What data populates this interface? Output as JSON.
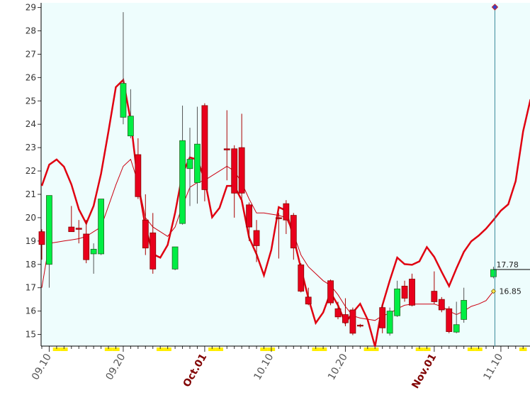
{
  "chart_data": {
    "type": "candlestick",
    "categories": [
      null,
      "09.10",
      null,
      null,
      null,
      null,
      null,
      null,
      null,
      null,
      null,
      "09.20",
      null,
      null,
      null,
      null,
      null,
      null,
      null,
      null,
      null,
      null,
      "Oct.01",
      null,
      null,
      null,
      null,
      null,
      null,
      null,
      null,
      "10.10",
      null,
      null,
      null,
      null,
      null,
      null,
      null,
      null,
      null,
      "10.20",
      null,
      null,
      null,
      null,
      null,
      null,
      null,
      null,
      null,
      null,
      null,
      "Nov.01",
      null,
      null,
      null,
      null,
      null,
      null,
      null,
      null,
      "11.10",
      null,
      null,
      null,
      null
    ],
    "open": [
      19.4,
      18.0,
      null,
      null,
      19.6,
      19.55,
      19.3,
      18.45,
      18.45,
      null,
      null,
      24.3,
      23.5,
      22.7,
      19.9,
      19.35,
      null,
      null,
      17.8,
      19.75,
      22.1,
      21.5,
      24.8,
      null,
      null,
      22.95,
      22.95,
      23.0,
      20.55,
      19.45,
      null,
      null,
      20.0,
      20.6,
      20.1,
      17.98,
      16.6,
      null,
      null,
      17.3,
      16.1,
      15.85,
      16.05,
      15.4,
      null,
      null,
      16.15,
      15.05,
      15.8,
      17.07,
      17.37,
      null,
      null,
      16.85,
      16.5,
      16.1,
      15.1,
      15.64,
      null,
      null,
      null,
      17.47,
      null,
      null,
      null,
      null,
      null
    ],
    "high": [
      19.5,
      20.95,
      null,
      null,
      20.5,
      19.9,
      19.9,
      18.9,
      20.8,
      null,
      null,
      28.8,
      25.5,
      23.4,
      21.0,
      20.2,
      null,
      null,
      18.75,
      24.8,
      23.85,
      24.75,
      24.9,
      null,
      null,
      24.6,
      23.1,
      24.45,
      20.65,
      19.9,
      null,
      null,
      20.2,
      20.75,
      20.2,
      18.05,
      17.0,
      null,
      null,
      17.35,
      16.4,
      16.55,
      16.15,
      15.45,
      null,
      null,
      16.3,
      16.15,
      17.3,
      17.3,
      17.6,
      null,
      null,
      17.7,
      16.6,
      16.2,
      16.4,
      17.0,
      null,
      null,
      null,
      17.9,
      null,
      null,
      null,
      null,
      null
    ],
    "low": [
      18.2,
      17.0,
      null,
      null,
      19.4,
      18.9,
      18.05,
      17.6,
      18.4,
      null,
      null,
      24.0,
      23.4,
      20.8,
      18.4,
      17.6,
      null,
      null,
      17.75,
      19.7,
      20.5,
      20.6,
      20.7,
      null,
      null,
      21.6,
      20.0,
      20.8,
      19.0,
      18.1,
      null,
      null,
      18.25,
      19.3,
      18.2,
      16.8,
      16.25,
      null,
      null,
      16.25,
      15.65,
      15.35,
      14.97,
      15.3,
      null,
      null,
      15.05,
      14.95,
      15.75,
      16.4,
      16.2,
      null,
      null,
      16.3,
      15.95,
      15.05,
      15.05,
      15.5,
      null,
      null,
      null,
      17.4,
      null,
      null,
      null,
      null,
      null
    ],
    "close": [
      18.85,
      20.95,
      null,
      null,
      19.4,
      19.5,
      18.2,
      18.65,
      20.8,
      null,
      null,
      25.75,
      24.35,
      20.9,
      18.7,
      17.8,
      null,
      null,
      18.75,
      23.3,
      22.5,
      23.15,
      21.2,
      null,
      null,
      22.9,
      21.05,
      21.05,
      19.6,
      18.8,
      null,
      null,
      19.97,
      19.9,
      18.7,
      16.85,
      16.3,
      null,
      null,
      16.35,
      15.75,
      15.5,
      15.05,
      15.38,
      null,
      null,
      15.28,
      16.0,
      16.95,
      16.55,
      16.25,
      null,
      null,
      16.4,
      16.05,
      15.12,
      15.42,
      16.46,
      null,
      null,
      null,
      17.78,
      null,
      null,
      null,
      null,
      null
    ],
    "up_color": "#00ee44",
    "down_color": "#e8001c",
    "lines": [
      {
        "color": "#e00010",
        "width": 2.5,
        "values": [
          21.36,
          22.27,
          22.49,
          22.18,
          21.42,
          20.36,
          19.75,
          20.5,
          21.88,
          23.7,
          25.59,
          25.9,
          24.16,
          21.48,
          19.6,
          18.44,
          18.29,
          18.83,
          20.2,
          21.88,
          22.58,
          22.49,
          21.63,
          20.02,
          20.42,
          21.36,
          21.36,
          20.75,
          19.14,
          18.44,
          17.53,
          18.62,
          20.45,
          20.3,
          19.14,
          17.83,
          16.55,
          15.49,
          15.94,
          16.8,
          16.25,
          15.49,
          15.94,
          16.31,
          15.64,
          14.48,
          16.25,
          17.31,
          18.29,
          18.01,
          17.98,
          18.13,
          18.74,
          18.32,
          17.68,
          17.07,
          17.83,
          18.53,
          18.99,
          19.23,
          19.53,
          19.9,
          20.3,
          20.57,
          21.57,
          23.7,
          25.07
        ]
      },
      {
        "color": "#cc0010",
        "width": 1,
        "values": [
          17.0,
          18.9,
          18.95,
          19.0,
          19.05,
          19.1,
          19.2,
          19.4,
          19.6,
          20.5,
          21.4,
          22.2,
          22.5,
          21.5,
          20.0,
          19.6,
          19.4,
          19.2,
          19.6,
          20.5,
          21.3,
          21.5,
          21.6,
          21.8,
          22.0,
          22.2,
          22.0,
          21.5,
          20.8,
          20.2,
          20.2,
          20.15,
          20.1,
          20.0,
          19.3,
          18.4,
          17.9,
          17.6,
          17.3,
          17.1,
          16.7,
          16.2,
          15.8,
          15.7,
          15.65,
          15.6,
          15.8,
          15.9,
          16.1,
          16.25,
          16.3,
          16.3,
          16.3,
          16.3,
          16.2,
          16.0,
          15.85,
          16.0,
          16.2,
          16.3,
          16.45,
          16.85,
          null,
          null,
          null,
          null,
          null
        ]
      }
    ],
    "markers": [
      17.78,
      16.85
    ],
    "ylim": [
      14.5,
      29.2
    ],
    "yticks": [
      15,
      16,
      17,
      18,
      19,
      20,
      21,
      22,
      23,
      24,
      25,
      26,
      27,
      28,
      29
    ],
    "background": "#eefdfd",
    "weekend_color": "#ffee00",
    "highlight_label_color": "#800000"
  }
}
